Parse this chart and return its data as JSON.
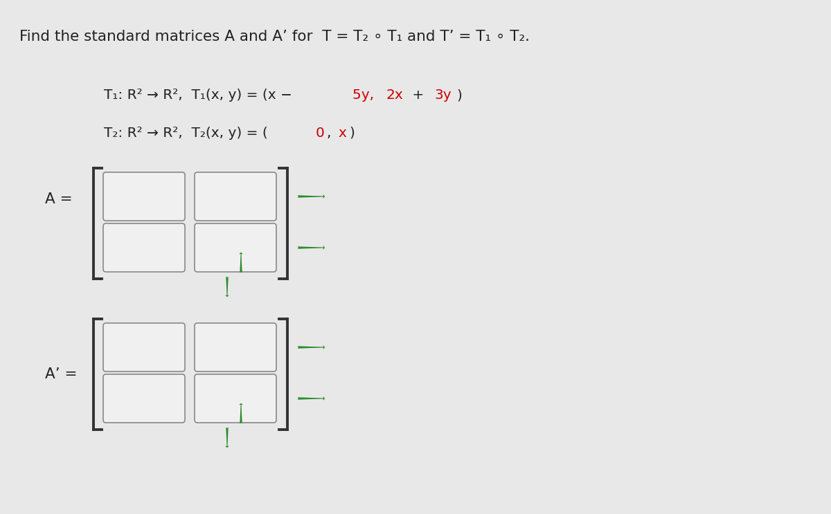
{
  "bg_color": "#e8e8e8",
  "title_line": "Find the standard matrices A and A’ for  T = T₂ ∘ T₁ and T’ = T₁ ∘ T₂.",
  "line1": "T₁: R² → R²,  T₁(x, y) = (x − 5y, 2x + 3y)",
  "line2": "T₂: R² → R²,  T₂(x, y) = (0, x)",
  "label_A": "A =",
  "label_Ap": "A’ =",
  "box_fill": "#f0f0f0",
  "box_edge": "#888888",
  "bracket_color": "#333333",
  "arrow_color": "#2d8a2d",
  "text_color": "#222222",
  "red_color": "#cc0000"
}
